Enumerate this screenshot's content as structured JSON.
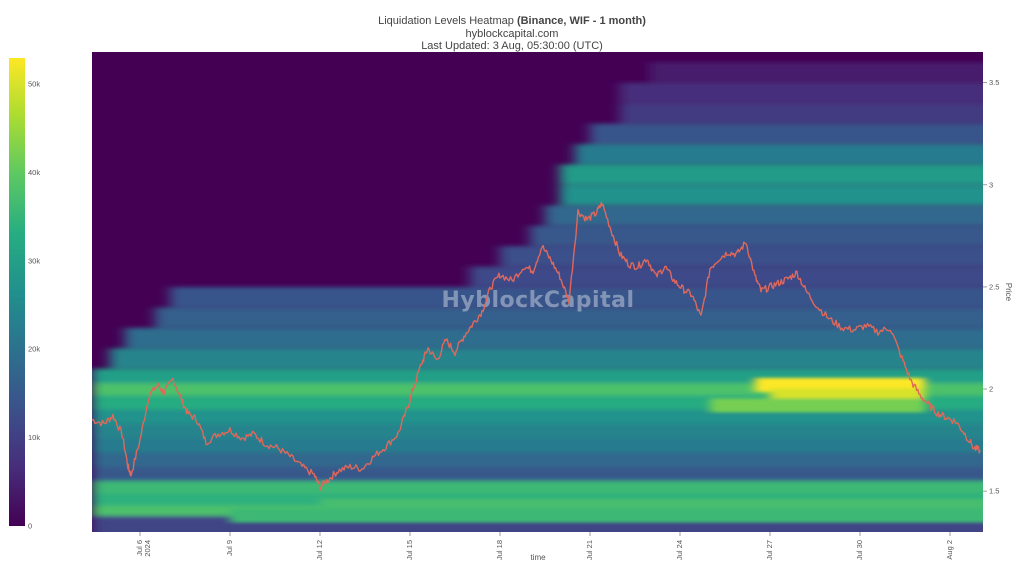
{
  "title": {
    "main": "Liquidation Levels Heatmap",
    "main_bold": "(Binance, WIF - 1 month)",
    "site": "hyblockcapital.com",
    "updated": "Last Updated: 3 Aug, 05:30:00 (UTC)"
  },
  "watermark": "HyblockCapital",
  "colorbar": {
    "ticks": [
      "50k",
      "40k",
      "30k",
      "20k",
      "10k",
      "0"
    ],
    "colors": [
      "#440154",
      "#472d7b",
      "#3b518b",
      "#2c718e",
      "#21908d",
      "#27ad81",
      "#5cc863",
      "#aadc32",
      "#fde725"
    ]
  },
  "chart_data": {
    "type": "heatmap",
    "xlabel": "time",
    "ylabel": "Price",
    "x_ticks": [
      "Jul 6\n2024",
      "Jul 9",
      "Jul 12",
      "Jul 15",
      "Jul 18",
      "Jul 21",
      "Jul 24",
      "Jul 27",
      "Jul 30",
      "Aug 2"
    ],
    "x_tick_days": [
      0,
      3,
      6,
      9,
      12,
      15,
      18,
      21,
      24,
      27
    ],
    "xlim": [
      -1.6,
      28.1
    ],
    "y_ticks": [
      "3.5",
      "3",
      "2.5",
      "2",
      "1.5"
    ],
    "ylim": [
      1.3,
      3.65
    ],
    "zlim": [
      0,
      53000
    ],
    "liquidation_bands": [
      {
        "price": 3.55,
        "start_day": 17.0,
        "end_day": 28.1,
        "value": 4000
      },
      {
        "price": 3.45,
        "start_day": 16.0,
        "end_day": 28.1,
        "value": 7000
      },
      {
        "price": 3.35,
        "start_day": 16.0,
        "end_day": 28.1,
        "value": 9000
      },
      {
        "price": 3.25,
        "start_day": 15.0,
        "end_day": 28.1,
        "value": 14000
      },
      {
        "price": 3.15,
        "start_day": 14.5,
        "end_day": 28.1,
        "value": 22000
      },
      {
        "price": 3.05,
        "start_day": 14.0,
        "end_day": 28.1,
        "value": 29000
      },
      {
        "price": 2.95,
        "start_day": 14.0,
        "end_day": 28.1,
        "value": 27000
      },
      {
        "price": 2.85,
        "start_day": 13.5,
        "end_day": 28.1,
        "value": 18000
      },
      {
        "price": 2.75,
        "start_day": 13.0,
        "end_day": 28.1,
        "value": 15000
      },
      {
        "price": 2.65,
        "start_day": 12.0,
        "end_day": 28.1,
        "value": 13000
      },
      {
        "price": 2.55,
        "start_day": 11.0,
        "end_day": 28.1,
        "value": 12000
      },
      {
        "price": 2.45,
        "start_day": 1.0,
        "end_day": 28.1,
        "value": 14000
      },
      {
        "price": 2.35,
        "start_day": 0.5,
        "end_day": 28.1,
        "value": 16000
      },
      {
        "price": 2.25,
        "start_day": -0.5,
        "end_day": 28.1,
        "value": 19000
      },
      {
        "price": 2.15,
        "start_day": -1.0,
        "end_day": 28.1,
        "value": 24000
      },
      {
        "price": 2.05,
        "start_day": -1.6,
        "end_day": 28.1,
        "value": 30000
      },
      {
        "price": 1.98,
        "start_day": -1.6,
        "end_day": 28.1,
        "value": 38000
      },
      {
        "price": 1.92,
        "start_day": -1.6,
        "end_day": 28.1,
        "value": 33000
      },
      {
        "price": 1.85,
        "start_day": -1.6,
        "end_day": 28.1,
        "value": 27000
      },
      {
        "price": 1.78,
        "start_day": -1.6,
        "end_day": 28.1,
        "value": 24000
      },
      {
        "price": 1.71,
        "start_day": -1.6,
        "end_day": 28.1,
        "value": 22000
      },
      {
        "price": 1.64,
        "start_day": -1.6,
        "end_day": 28.1,
        "value": 18000
      },
      {
        "price": 1.57,
        "start_day": -1.6,
        "end_day": 28.1,
        "value": 15000
      },
      {
        "price": 1.5,
        "start_day": -1.6,
        "end_day": 28.1,
        "value": 36000
      },
      {
        "price": 1.44,
        "start_day": -1.6,
        "end_day": 28.1,
        "value": 34000
      },
      {
        "price": 1.38,
        "start_day": -1.6,
        "end_day": 28.1,
        "value": 38000
      },
      {
        "price": 1.33,
        "start_day": -1.6,
        "end_day": 28.1,
        "value": 11000
      }
    ],
    "hotspots": [
      {
        "price": 2.02,
        "start_day": 20.5,
        "end_day": 25.7,
        "value": 53000
      },
      {
        "price": 1.97,
        "start_day": 21.0,
        "end_day": 25.7,
        "value": 50000
      },
      {
        "price": 1.92,
        "start_day": 19.0,
        "end_day": 25.7,
        "value": 42000
      },
      {
        "price": 1.43,
        "start_day": 6.0,
        "end_day": 28.1,
        "value": 37000
      },
      {
        "price": 1.38,
        "start_day": 3.0,
        "end_day": 28.1,
        "value": 36000
      }
    ],
    "series": [
      {
        "name": "WIF price",
        "x": [
          -1.6,
          -1.2,
          -0.9,
          -0.6,
          -0.4,
          -0.3,
          0.0,
          0.3,
          0.6,
          0.8,
          1.1,
          1.4,
          1.6,
          1.9,
          2.2,
          2.6,
          3.0,
          3.4,
          3.8,
          4.2,
          4.6,
          5.0,
          5.4,
          5.8,
          6.0,
          6.3,
          6.6,
          7.0,
          7.4,
          7.8,
          8.2,
          8.6,
          8.9,
          9.1,
          9.4,
          9.6,
          9.9,
          10.2,
          10.5,
          10.8,
          11.1,
          11.4,
          11.7,
          12.0,
          12.4,
          12.8,
          13.1,
          13.4,
          13.7,
          14.0,
          14.3,
          14.6,
          14.9,
          15.2,
          15.4,
          15.7,
          16.0,
          16.3,
          16.6,
          16.9,
          17.2,
          17.5,
          17.8,
          18.1,
          18.4,
          18.7,
          19.0,
          19.3,
          19.6,
          19.9,
          20.2,
          20.5,
          20.7,
          21.0,
          21.3,
          21.6,
          21.9,
          22.2,
          22.6,
          23.0,
          23.4,
          23.8,
          24.2,
          24.6,
          25.0,
          25.4,
          25.7,
          26.0,
          26.3,
          26.6,
          26.9,
          27.2,
          27.5,
          27.8,
          28.0
        ],
        "y": [
          1.85,
          1.83,
          1.87,
          1.78,
          1.62,
          1.58,
          1.75,
          1.97,
          2.02,
          1.98,
          2.05,
          1.94,
          1.88,
          1.85,
          1.74,
          1.78,
          1.8,
          1.76,
          1.78,
          1.73,
          1.71,
          1.67,
          1.62,
          1.58,
          1.52,
          1.56,
          1.6,
          1.62,
          1.61,
          1.67,
          1.72,
          1.78,
          1.9,
          2.0,
          2.13,
          2.2,
          2.14,
          2.24,
          2.18,
          2.26,
          2.32,
          2.38,
          2.5,
          2.56,
          2.53,
          2.6,
          2.58,
          2.7,
          2.63,
          2.55,
          2.43,
          2.87,
          2.83,
          2.86,
          2.91,
          2.78,
          2.66,
          2.61,
          2.6,
          2.64,
          2.55,
          2.6,
          2.53,
          2.49,
          2.46,
          2.35,
          2.59,
          2.64,
          2.67,
          2.66,
          2.72,
          2.55,
          2.48,
          2.5,
          2.52,
          2.54,
          2.57,
          2.48,
          2.4,
          2.34,
          2.3,
          2.29,
          2.31,
          2.28,
          2.3,
          2.15,
          2.04,
          1.97,
          1.92,
          1.88,
          1.86,
          1.84,
          1.78,
          1.71,
          1.7
        ]
      }
    ]
  }
}
